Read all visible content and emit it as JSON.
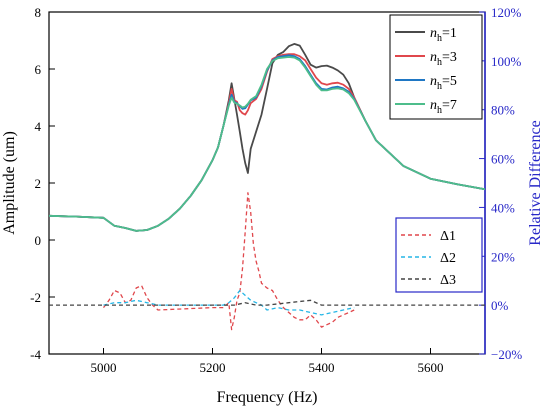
{
  "chart_data": {
    "type": "line",
    "xlabel": "Frequency (Hz)",
    "ylabel_left": "Amplitude (um)",
    "ylabel_right": "Relative Difference",
    "xlim": [
      4900,
      5700
    ],
    "ylim_left": [
      -4,
      8
    ],
    "ylim_right": [
      -20,
      120
    ],
    "x_ticks": [
      5000,
      5200,
      5400,
      5600
    ],
    "y_ticks_left": [
      -4,
      -2,
      0,
      2,
      4,
      6,
      8
    ],
    "y_ticks_right": [
      "−20%",
      "0%",
      "20%",
      "40%",
      "60%",
      "80%",
      "100%",
      "120%"
    ],
    "y_ticks_right_values": [
      -20,
      0,
      20,
      40,
      60,
      80,
      100,
      120
    ],
    "grid": false,
    "legend_top": {
      "position": "top-right",
      "entries": [
        {
          "sym": "n",
          "sub": "h",
          "rest": "=1",
          "color": "#4a4a4a"
        },
        {
          "sym": "n",
          "sub": "h",
          "rest": "=3",
          "color": "#e0474c"
        },
        {
          "sym": "n",
          "sub": "h",
          "rest": "=5",
          "color": "#1f77c4"
        },
        {
          "sym": "n",
          "sub": "h",
          "rest": "=7",
          "color": "#4dbd8b"
        }
      ]
    },
    "legend_bottom": {
      "position": "bottom-right",
      "entries": [
        {
          "label": "Δ1",
          "color": "#e0474c"
        },
        {
          "label": "Δ2",
          "color": "#25b6e6"
        },
        {
          "label": "Δ3",
          "color": "#444444"
        }
      ]
    },
    "series": [
      {
        "name": "nh=1",
        "axis": "left",
        "style": "solid",
        "color": "#4a4a4a",
        "width": 1.8,
        "x": [
          4900,
          4950,
          5000,
          5020,
          5040,
          5060,
          5080,
          5100,
          5120,
          5140,
          5160,
          5180,
          5200,
          5210,
          5220,
          5230,
          5235,
          5240,
          5245,
          5250,
          5255,
          5260,
          5265,
          5270,
          5280,
          5290,
          5300,
          5310,
          5320,
          5330,
          5340,
          5350,
          5360,
          5370,
          5380,
          5390,
          5400,
          5410,
          5420,
          5430,
          5440,
          5450,
          5460,
          5480,
          5500,
          5550,
          5600,
          5650,
          5700
        ],
        "y": [
          0.85,
          0.82,
          0.78,
          0.5,
          0.42,
          0.32,
          0.35,
          0.5,
          0.75,
          1.1,
          1.55,
          2.1,
          2.8,
          3.25,
          4.0,
          4.9,
          5.5,
          4.95,
          4.4,
          3.8,
          3.2,
          2.7,
          2.35,
          3.2,
          3.8,
          4.4,
          5.3,
          6.2,
          6.5,
          6.6,
          6.8,
          6.88,
          6.82,
          6.5,
          6.15,
          6.05,
          6.1,
          6.12,
          6.05,
          5.95,
          5.8,
          5.5,
          5.0,
          4.2,
          3.5,
          2.6,
          2.15,
          1.95,
          1.78
        ]
      },
      {
        "name": "nh=3",
        "axis": "left",
        "style": "solid",
        "color": "#e0474c",
        "width": 1.8,
        "x": [
          4900,
          4950,
          5000,
          5020,
          5040,
          5060,
          5080,
          5100,
          5120,
          5140,
          5160,
          5180,
          5200,
          5210,
          5220,
          5230,
          5235,
          5240,
          5245,
          5250,
          5255,
          5260,
          5265,
          5270,
          5280,
          5290,
          5300,
          5310,
          5320,
          5330,
          5340,
          5350,
          5360,
          5370,
          5380,
          5390,
          5400,
          5410,
          5420,
          5430,
          5440,
          5450,
          5460,
          5480,
          5500,
          5550,
          5600,
          5650,
          5700
        ],
        "y": [
          0.85,
          0.82,
          0.78,
          0.5,
          0.42,
          0.32,
          0.35,
          0.5,
          0.75,
          1.1,
          1.55,
          2.1,
          2.8,
          3.25,
          4.0,
          4.8,
          5.3,
          4.9,
          4.85,
          4.55,
          4.45,
          4.4,
          4.55,
          4.8,
          4.95,
          5.3,
          5.9,
          6.35,
          6.45,
          6.5,
          6.52,
          6.52,
          6.45,
          6.3,
          6.0,
          5.7,
          5.5,
          5.45,
          5.5,
          5.52,
          5.45,
          5.3,
          5.0,
          4.2,
          3.5,
          2.6,
          2.15,
          1.95,
          1.78
        ]
      },
      {
        "name": "nh=5",
        "axis": "left",
        "style": "solid",
        "color": "#1f77c4",
        "width": 1.8,
        "x": [
          4900,
          4950,
          5000,
          5020,
          5040,
          5060,
          5080,
          5100,
          5120,
          5140,
          5160,
          5180,
          5200,
          5210,
          5220,
          5230,
          5235,
          5240,
          5245,
          5250,
          5255,
          5260,
          5265,
          5270,
          5280,
          5290,
          5300,
          5310,
          5320,
          5330,
          5340,
          5350,
          5360,
          5370,
          5380,
          5390,
          5400,
          5410,
          5420,
          5430,
          5440,
          5450,
          5460,
          5480,
          5500,
          5550,
          5600,
          5650,
          5700
        ],
        "y": [
          0.85,
          0.82,
          0.78,
          0.5,
          0.42,
          0.32,
          0.35,
          0.5,
          0.75,
          1.1,
          1.55,
          2.1,
          2.8,
          3.25,
          4.0,
          4.75,
          5.1,
          4.85,
          4.8,
          4.7,
          4.6,
          4.62,
          4.75,
          4.9,
          5.0,
          5.4,
          5.95,
          6.3,
          6.42,
          6.45,
          6.48,
          6.45,
          6.35,
          6.1,
          5.8,
          5.5,
          5.3,
          5.28,
          5.35,
          5.38,
          5.32,
          5.2,
          4.95,
          4.2,
          3.5,
          2.6,
          2.15,
          1.95,
          1.78
        ]
      },
      {
        "name": "nh=7",
        "axis": "left",
        "style": "solid",
        "color": "#4dbd8b",
        "width": 1.8,
        "x": [
          4900,
          4950,
          5000,
          5020,
          5040,
          5060,
          5080,
          5100,
          5120,
          5140,
          5160,
          5180,
          5200,
          5210,
          5220,
          5230,
          5235,
          5240,
          5245,
          5250,
          5255,
          5260,
          5265,
          5270,
          5280,
          5290,
          5300,
          5310,
          5320,
          5330,
          5340,
          5350,
          5360,
          5370,
          5380,
          5390,
          5400,
          5410,
          5420,
          5430,
          5440,
          5450,
          5460,
          5480,
          5500,
          5550,
          5600,
          5650,
          5700
        ],
        "y": [
          0.85,
          0.82,
          0.78,
          0.5,
          0.42,
          0.32,
          0.35,
          0.5,
          0.75,
          1.1,
          1.55,
          2.1,
          2.8,
          3.25,
          4.0,
          4.72,
          5.0,
          4.82,
          4.78,
          4.72,
          4.65,
          4.68,
          4.78,
          4.92,
          5.05,
          5.45,
          6.0,
          6.28,
          6.38,
          6.4,
          6.42,
          6.4,
          6.3,
          6.05,
          5.75,
          5.45,
          5.25,
          5.25,
          5.3,
          5.32,
          5.28,
          5.15,
          4.92,
          4.2,
          3.5,
          2.6,
          2.15,
          1.95,
          1.78
        ]
      },
      {
        "name": "Δ1",
        "axis": "right",
        "style": "dashed",
        "color": "#e0474c",
        "width": 1.3,
        "x": [
          5000,
          5010,
          5020,
          5030,
          5040,
          5050,
          5060,
          5070,
          5080,
          5090,
          5100,
          5200,
          5220,
          5230,
          5235,
          5240,
          5245,
          5250,
          5255,
          5260,
          5265,
          5270,
          5275,
          5280,
          5285,
          5290,
          5300,
          5310,
          5320,
          5330,
          5340,
          5350,
          5360,
          5370,
          5380,
          5390,
          5400,
          5410,
          5420,
          5430,
          5440,
          5450,
          5460
        ],
        "y": [
          -1,
          2,
          6,
          5,
          1,
          2,
          7,
          8,
          3,
          0,
          -2,
          -1,
          -1,
          1,
          -10,
          -5,
          2,
          5,
          15,
          30,
          46,
          38,
          25,
          18,
          14,
          9,
          7,
          6,
          2,
          -1,
          -3,
          -5,
          -6,
          -6,
          -4,
          -6,
          -9,
          -8,
          -7,
          -5,
          -4,
          -3,
          -2
        ]
      },
      {
        "name": "Δ2",
        "axis": "right",
        "style": "dashed",
        "color": "#25b6e6",
        "width": 1.3,
        "x": [
          5000,
          5020,
          5040,
          5060,
          5080,
          5100,
          5200,
          5220,
          5230,
          5240,
          5250,
          5260,
          5270,
          5280,
          5290,
          5300,
          5320,
          5340,
          5360,
          5380,
          5400,
          5420,
          5440,
          5460
        ],
        "y": [
          0,
          1,
          1,
          2,
          1,
          0,
          0,
          0,
          1,
          3,
          6,
          4,
          2,
          1,
          0,
          -2,
          -1,
          -2,
          -2,
          -3,
          -4,
          -3,
          -2,
          -1
        ]
      },
      {
        "name": "Δ3",
        "axis": "right",
        "style": "dashed",
        "color": "#444444",
        "width": 1.3,
        "x": [
          4900,
          5000,
          5100,
          5200,
          5240,
          5260,
          5280,
          5300,
          5340,
          5380,
          5400,
          5440,
          5500,
          5600,
          5700
        ],
        "y": [
          0,
          0,
          0,
          0,
          0,
          1,
          0,
          0,
          1,
          2,
          0,
          0,
          0,
          0,
          0
        ]
      }
    ]
  }
}
